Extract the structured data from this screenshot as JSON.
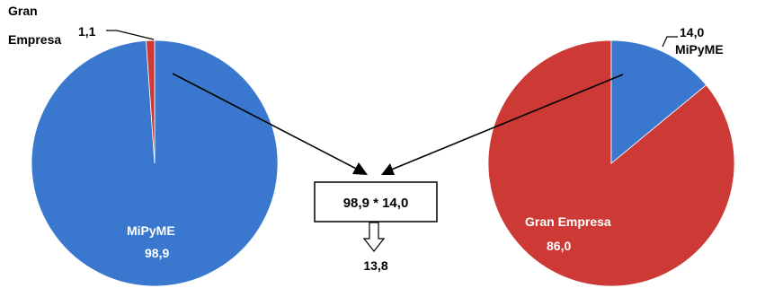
{
  "colors": {
    "mipyme": "#3a78cf",
    "gran_empresa": "#cd3a36",
    "outline": "#ffffff",
    "arrow": "#000000"
  },
  "chart_data": [
    {
      "type": "pie",
      "title": "",
      "slices": [
        {
          "label": "MiPyME",
          "value": 98.9,
          "value_label": "98,9",
          "color": "#3a78cf"
        },
        {
          "label": "Gran\nEmpresa",
          "value": 1.1,
          "value_label": "1,1",
          "color": "#cd3a36"
        }
      ]
    },
    {
      "type": "pie",
      "title": "",
      "slices": [
        {
          "label": "MiPyME",
          "value": 14.0,
          "value_label": "14,0",
          "color": "#3a78cf"
        },
        {
          "label": "Gran Empresa",
          "value": 86.0,
          "value_label": "86,0",
          "color": "#cd3a36"
        }
      ]
    }
  ],
  "calculation": {
    "expression": "98,9 * 14,0",
    "result": "13,8"
  }
}
